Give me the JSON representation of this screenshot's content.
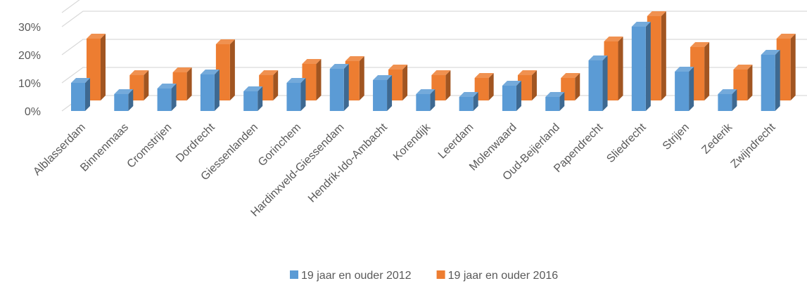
{
  "chart_data": {
    "type": "bar3d",
    "categories": [
      "Alblasserdam",
      "Binnenmaas",
      "Cromstrijen",
      "Dordrecht",
      "Giessenlanden",
      "Gorinchem",
      "Hardinxveld-Giessendam",
      "Hendrik-Ido-Ambacht",
      "Korendijk",
      "Leerdam",
      "Molenwaard",
      "Oud-Beijerland",
      "Papendrecht",
      "Sliedrecht",
      "Strijen",
      "Zederik",
      "Zwijndrecht"
    ],
    "series": [
      {
        "name": "19 jaar en ouder 2012",
        "color": "#5b9bd5",
        "values": [
          10,
          6,
          8,
          13,
          7,
          10,
          15,
          11,
          6,
          5,
          9,
          5,
          18,
          30,
          14,
          6,
          20
        ]
      },
      {
        "name": "19 jaar en ouder 2016",
        "color": "#ed7d31",
        "values": [
          22,
          9,
          10,
          20,
          9,
          13,
          14,
          11,
          9,
          8,
          9,
          8,
          21,
          30,
          19,
          11,
          22
        ]
      }
    ],
    "ylim": [
      0,
      35
    ],
    "yticks": [
      {
        "value": 0,
        "label": "0%"
      },
      {
        "value": 10,
        "label": "10%"
      },
      {
        "value": 20,
        "label": "20%"
      },
      {
        "value": 30,
        "label": "30%"
      }
    ],
    "grid": true,
    "legend": "bottom"
  }
}
